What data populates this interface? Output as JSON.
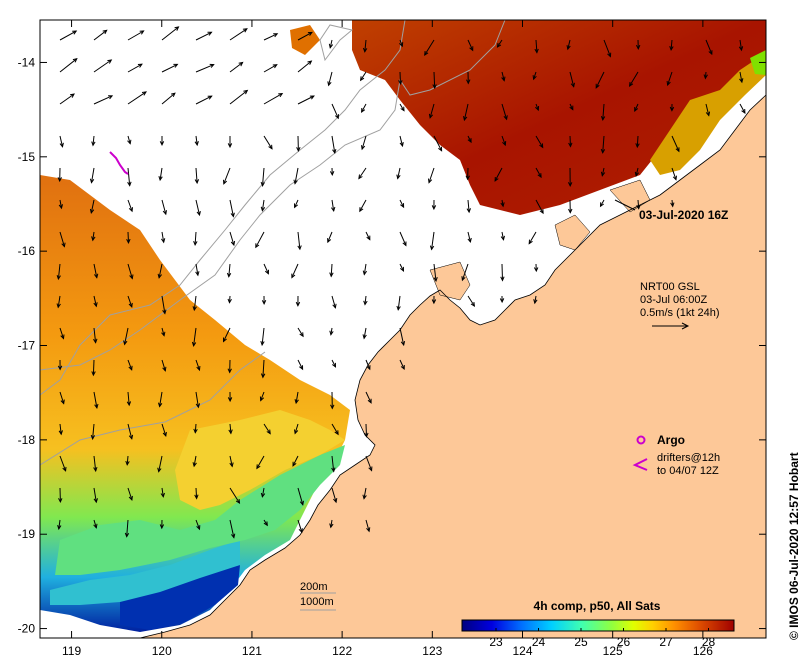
{
  "map": {
    "lon_ticks": [
      "119",
      "120",
      "121",
      "122",
      "123",
      "124",
      "125",
      "126"
    ],
    "lat_ticks": [
      "-14",
      "-15",
      "-16",
      "-17",
      "-18",
      "-19",
      "-20"
    ],
    "lon_range": [
      118.65,
      126.7
    ],
    "lat_range": [
      -20.1,
      -13.55
    ]
  },
  "annotations": {
    "timestamp": "03-Jul-2020 16Z",
    "current_model": "NRT00 GSL",
    "current_time": "03-Jul 06:00Z",
    "current_scale": "0.5m/s (1kt 24h)",
    "argo_label": "Argo",
    "drifters_line1": "drifters@12h",
    "drifters_line2": "to 04/07 12Z",
    "bathy_200": "200m",
    "bathy_1000": "1000m"
  },
  "colorbar": {
    "title": "4h comp, p50, All Sats",
    "min": 22.2,
    "max": 28.6,
    "labels": [
      "23",
      "24",
      "25",
      "26",
      "27",
      "28"
    ]
  },
  "credit": "© IMOS 06-Jul-2020 12:57 Hobart",
  "colors": {
    "land": "#fdc898",
    "argo": "#cc00cc",
    "bathy": "#a0a0a0"
  }
}
